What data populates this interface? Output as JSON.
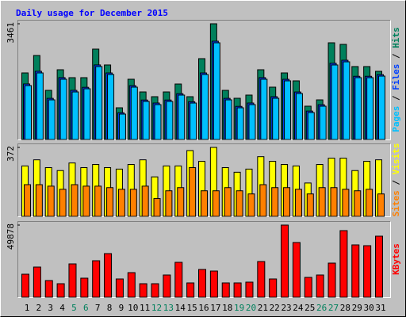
{
  "chart_data": [
    {
      "type": "bar",
      "title": "Daily usage for December 2015",
      "series": [
        {
          "name": "Pages",
          "color": "#00c0ff",
          "values": [
            1612,
            1991,
            1185,
            1802,
            1422,
            1517,
            2181,
            1944,
            759,
            1565,
            1138,
            1043,
            1138,
            1328,
            1090,
            1944,
            2892,
            1185,
            948,
            1043,
            1802,
            1233,
            1754,
            1375,
            806,
            996,
            2229,
            2323,
            1849,
            1849,
            1896
          ]
        },
        {
          "name": "Files",
          "color": "#0040ff",
          "values": [
            1660,
            2040,
            1230,
            1850,
            1470,
            1560,
            2230,
            1990,
            800,
            1610,
            1180,
            1090,
            1180,
            1370,
            1130,
            1990,
            2940,
            1230,
            990,
            1090,
            1850,
            1280,
            1800,
            1420,
            850,
            1040,
            2280,
            2370,
            1890,
            1890,
            1940
          ]
        },
        {
          "name": "Hits",
          "color": "#00805c",
          "values": [
            1991,
            2513,
            1470,
            2086,
            1849,
            1849,
            2703,
            2229,
            948,
            1802,
            1422,
            1280,
            1422,
            1659,
            1280,
            2418,
            3461,
            1470,
            1233,
            1328,
            2086,
            1565,
            1991,
            1754,
            996,
            1185,
            2892,
            2845,
            2181,
            2181,
            2039
          ]
        }
      ],
      "ylim": [
        0,
        3461
      ],
      "yticks": [
        3461
      ]
    },
    {
      "type": "bar",
      "series": [
        {
          "name": "Sites",
          "color": "#ff8000",
          "values": [
            171,
            171,
            163,
            146,
            171,
            163,
            163,
            155,
            146,
            146,
            163,
            96,
            138,
            155,
            263,
            138,
            138,
            155,
            138,
            121,
            171,
            155,
            155,
            146,
            121,
            155,
            155,
            146,
            138,
            146,
            121
          ]
        },
        {
          "name": "Visits",
          "color": "#ffff00",
          "values": [
            272,
            305,
            263,
            247,
            288,
            263,
            280,
            263,
            255,
            280,
            305,
            213,
            272,
            272,
            355,
            297,
            372,
            263,
            238,
            255,
            322,
            297,
            280,
            272,
            180,
            280,
            314,
            314,
            247,
            297,
            305
          ]
        }
      ],
      "ylim": [
        0,
        372
      ],
      "yticks": [
        372
      ]
    },
    {
      "type": "bar",
      "categories": [
        "1",
        "2",
        "3",
        "4",
        "5",
        "6",
        "7",
        "8",
        "9",
        "10",
        "11",
        "12",
        "13",
        "14",
        "15",
        "16",
        "17",
        "18",
        "19",
        "20",
        "21",
        "22",
        "23",
        "24",
        "25",
        "26",
        "27",
        "28",
        "29",
        "30",
        "31"
      ],
      "highlight": [
        4,
        5,
        11,
        12,
        18,
        19,
        25,
        26
      ],
      "highlight_color": "#00805c",
      "series": [
        {
          "name": "KBytes",
          "color": "#ff0000",
          "values": [
            15895,
            20834,
            11510,
            9318,
            23021,
            13155,
            25214,
            30148,
            12607,
            16991,
            9318,
            9318,
            15347,
            24118,
            9866,
            19184,
            18088,
            9866,
            9866,
            10414,
            24666,
            12607,
            49878,
            37820,
            13703,
            15347,
            23569,
            46041,
            36175,
            35627,
            42205
          ]
        }
      ],
      "ylim": [
        0,
        49878
      ],
      "yticks": [
        49878
      ]
    }
  ]
}
